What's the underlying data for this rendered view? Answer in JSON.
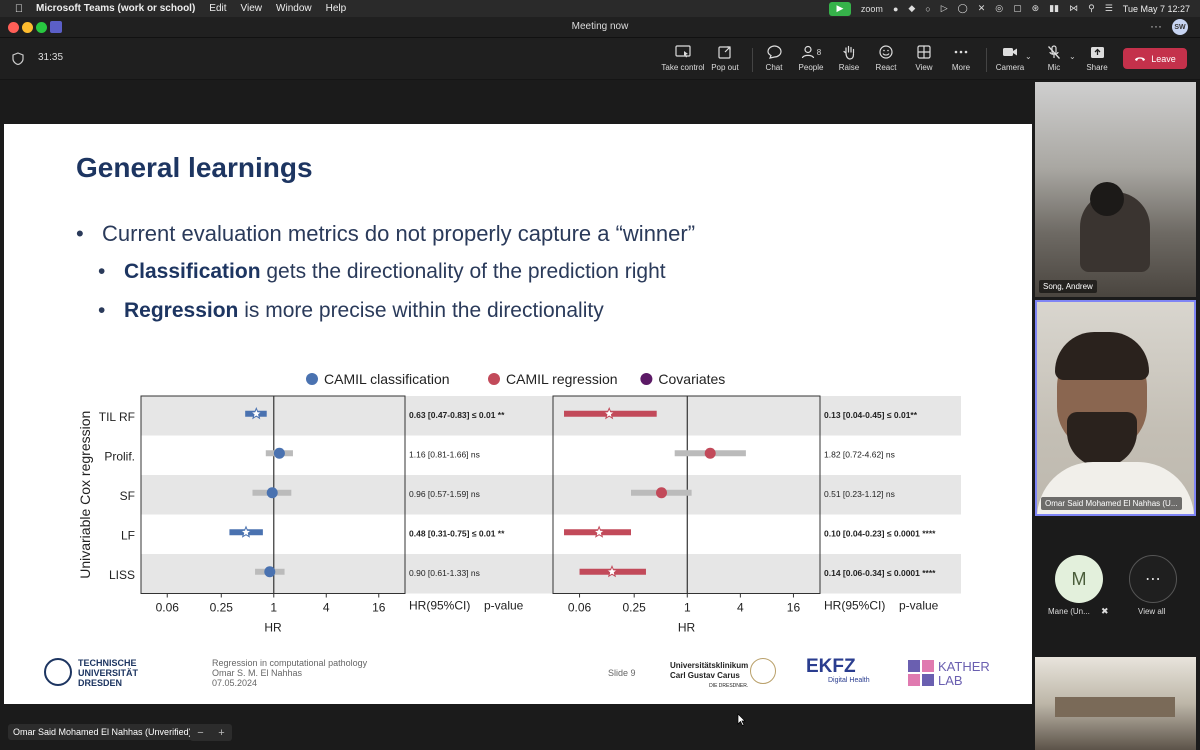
{
  "menubar": {
    "app_name": "Microsoft Teams (work or school)",
    "menus": [
      "Edit",
      "View",
      "Window",
      "Help"
    ],
    "zoom_label": "zoom",
    "datetime": "Tue May 7  12:27"
  },
  "window": {
    "title": "Meeting now",
    "more_label": "···",
    "user_initials": "SW"
  },
  "toolbar": {
    "timer": "31:35",
    "take_control": "Take control",
    "pop_out": "Pop out",
    "chat": "Chat",
    "people": "People",
    "people_count": "8",
    "raise": "Raise",
    "react": "React",
    "view": "View",
    "more": "More",
    "camera": "Camera",
    "mic": "Mic",
    "share": "Share",
    "leave": "Leave"
  },
  "slide": {
    "title": "General learnings",
    "bullet_main": "Current evaluation metrics do not properly capture a “winner”",
    "bullet_sub1_bold": "Classification",
    "bullet_sub1_rest": " gets the directionality of the prediction right",
    "bullet_sub2_bold": "Regression",
    "bullet_sub2_rest": " is more precise within the directionality",
    "footer_line1": "Regression in computational pathology",
    "footer_line2": "Omar S. M. El Nahhas",
    "footer_line3": "07.05.2024",
    "slide_number": "Slide 9",
    "logo_tud_1": "TECHNISCHE",
    "logo_tud_2": "UNIVERSITÄT",
    "logo_tud_3": "DRESDEN",
    "logo_ukd_1": "Universitätsklinikum",
    "logo_ukd_2": "Carl Gustav Carus",
    "logo_ukd_3": "DIE DRESDNER.",
    "logo_ekfz_1": "EKFZ",
    "logo_ekfz_2": "Digital Health",
    "logo_kather_1": "KATHER",
    "logo_kather_2": "LAB"
  },
  "chart_data": {
    "type": "forest",
    "ylabel": "Univariable Cox regression",
    "xlabel": "HR",
    "x_scale": "log2",
    "x_ticks": [
      0.06,
      0.25,
      1,
      4,
      16
    ],
    "x_tick_labels": [
      "0.06",
      "0.25",
      "1",
      "4",
      "16"
    ],
    "xlim": [
      0.03,
      32
    ],
    "rows": [
      "TIL RF",
      "Prolif.",
      "SF",
      "LF",
      "LISS"
    ],
    "legend": [
      {
        "name": "CAMIL classification",
        "color": "#4a72b0"
      },
      {
        "name": "CAMIL regression",
        "color": "#c24a5a"
      },
      {
        "name": "Covariates",
        "color": "#5c1a66"
      }
    ],
    "table_header": [
      "HR(95%CI)",
      "p-value"
    ],
    "panels": [
      {
        "series": "CAMIL classification",
        "color": "#4a72b0",
        "points": [
          {
            "row": "TIL RF",
            "hr": 0.63,
            "lo": 0.47,
            "hi": 0.83,
            "label": "0.63 [0.47-0.83] ≤ 0.01 **",
            "significant": true
          },
          {
            "row": "Prolif.",
            "hr": 1.16,
            "lo": 0.81,
            "hi": 1.66,
            "label": "1.16 [0.81-1.66] ns",
            "significant": false
          },
          {
            "row": "SF",
            "hr": 0.96,
            "lo": 0.57,
            "hi": 1.59,
            "label": "0.96 [0.57-1.59] ns",
            "significant": false
          },
          {
            "row": "LF",
            "hr": 0.48,
            "lo": 0.31,
            "hi": 0.75,
            "label": "0.48 [0.31-0.75] ≤ 0.01 **",
            "significant": true
          },
          {
            "row": "LISS",
            "hr": 0.9,
            "lo": 0.61,
            "hi": 1.33,
            "label": "0.90 [0.61-1.33] ns",
            "significant": false
          }
        ]
      },
      {
        "series": "CAMIL regression",
        "color": "#c24a5a",
        "points": [
          {
            "row": "TIL RF",
            "hr": 0.13,
            "lo": 0.04,
            "hi": 0.45,
            "label": "0.13 [0.04-0.45] ≤ 0.01**",
            "significant": true
          },
          {
            "row": "Prolif.",
            "hr": 1.82,
            "lo": 0.72,
            "hi": 4.62,
            "label": "1.82 [0.72-4.62] ns",
            "significant": false
          },
          {
            "row": "SF",
            "hr": 0.51,
            "lo": 0.23,
            "hi": 1.12,
            "label": "0.51 [0.23-1.12] ns",
            "significant": false
          },
          {
            "row": "LF",
            "hr": 0.1,
            "lo": 0.04,
            "hi": 0.23,
            "label": "0.10 [0.04-0.23] ≤ 0.0001 ****",
            "significant": true
          },
          {
            "row": "LISS",
            "hr": 0.14,
            "lo": 0.06,
            "hi": 0.34,
            "label": "0.14 [0.06-0.34] ≤ 0.0001 ****",
            "significant": true
          }
        ]
      }
    ]
  },
  "participants": {
    "song": "Song, Andrew",
    "omar": "Omar Said Mohamed El Nahhas (U...",
    "mane_initial": "M",
    "mane_name": "Mane (Un...",
    "view_all": "View all"
  },
  "bottom": {
    "presenter_name": "Omar Said Mohamed El Nahhas (Unverified)",
    "minus": "−",
    "plus": "+"
  }
}
